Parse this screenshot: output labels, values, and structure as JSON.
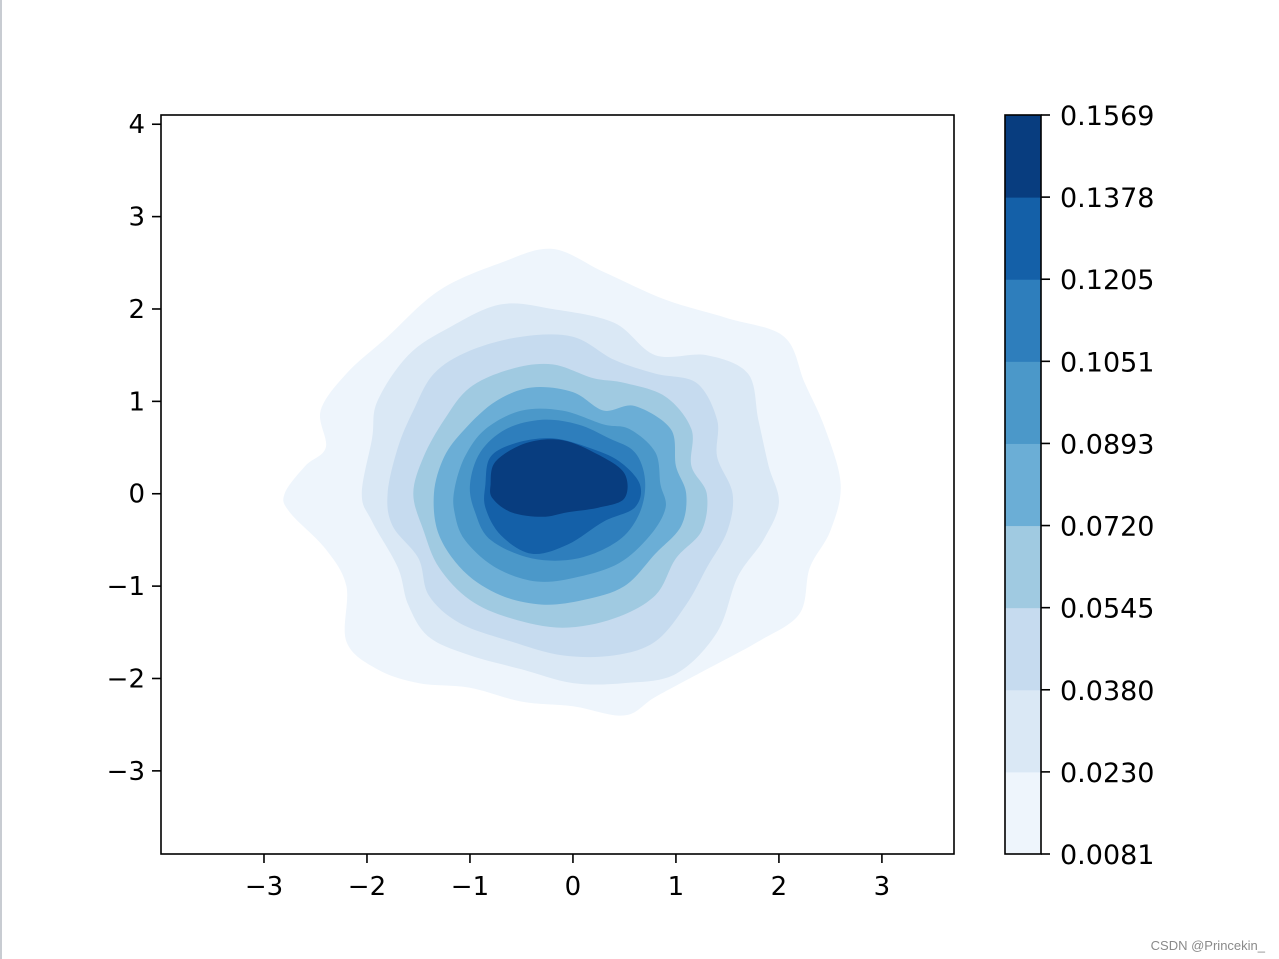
{
  "chart_data": {
    "type": "kde_filled_contour",
    "cmap": "Blues",
    "xlim": [
      -4.0,
      3.7
    ],
    "ylim": [
      -3.9,
      4.1
    ],
    "x_ticks": [
      -3,
      -2,
      -1,
      0,
      1,
      2,
      3
    ],
    "y_ticks": [
      -3,
      -2,
      -1,
      0,
      1,
      2,
      3,
      4
    ],
    "x_tick_labels": [
      "−3",
      "−2",
      "−1",
      "0",
      "1",
      "2",
      "3"
    ],
    "y_tick_labels": [
      "−3",
      "−2",
      "−1",
      "0",
      "1",
      "2",
      "3",
      "4"
    ],
    "center": [
      -0.1,
      0.1
    ],
    "levels": [
      0.0081,
      0.023,
      0.038,
      0.0545,
      0.072,
      0.0893,
      0.1051,
      0.1205,
      0.1378,
      0.1569
    ],
    "level_labels": [
      "0.0081",
      "0.0230",
      "0.0380",
      "0.0545",
      "0.0720",
      "0.0893",
      "0.1051",
      "0.1205",
      "0.1378",
      "0.1569"
    ],
    "colors": [
      "#eef5fc",
      "#dae8f5",
      "#c6dbef",
      "#a0cae1",
      "#6baed6",
      "#4b98c9",
      "#2e7ebc",
      "#1460a8",
      "#083d7f"
    ],
    "contours": [
      {
        "level": "0.0081",
        "color": "#eef5fc",
        "points": [
          [
            -2.8,
            0.0
          ],
          [
            -2.6,
            0.3
          ],
          [
            -2.4,
            0.5
          ],
          [
            -2.45,
            0.9
          ],
          [
            -2.2,
            1.3
          ],
          [
            -1.8,
            1.7
          ],
          [
            -1.3,
            2.2
          ],
          [
            -0.7,
            2.5
          ],
          [
            -0.2,
            2.65
          ],
          [
            0.3,
            2.4
          ],
          [
            0.9,
            2.1
          ],
          [
            1.5,
            1.9
          ],
          [
            2.05,
            1.7
          ],
          [
            2.25,
            1.2
          ],
          [
            2.45,
            0.7
          ],
          [
            2.6,
            0.1
          ],
          [
            2.5,
            -0.4
          ],
          [
            2.3,
            -0.8
          ],
          [
            2.2,
            -1.3
          ],
          [
            1.8,
            -1.6
          ],
          [
            1.3,
            -1.9
          ],
          [
            0.8,
            -2.2
          ],
          [
            0.5,
            -2.4
          ],
          [
            0.0,
            -2.3
          ],
          [
            -0.5,
            -2.25
          ],
          [
            -1.0,
            -2.1
          ],
          [
            -1.5,
            -2.05
          ],
          [
            -1.9,
            -1.9
          ],
          [
            -2.2,
            -1.6
          ],
          [
            -2.2,
            -1.0
          ],
          [
            -2.4,
            -0.6
          ],
          [
            -2.75,
            -0.2
          ]
        ]
      },
      {
        "level": "0.0230",
        "color": "#dae8f5",
        "points": [
          [
            -2.05,
            0.0
          ],
          [
            -1.95,
            0.6
          ],
          [
            -1.9,
            1.0
          ],
          [
            -1.6,
            1.5
          ],
          [
            -1.2,
            1.8
          ],
          [
            -0.7,
            2.05
          ],
          [
            -0.2,
            2.0
          ],
          [
            0.4,
            1.85
          ],
          [
            0.8,
            1.5
          ],
          [
            1.3,
            1.5
          ],
          [
            1.7,
            1.3
          ],
          [
            1.8,
            0.8
          ],
          [
            1.9,
            0.3
          ],
          [
            2.0,
            -0.1
          ],
          [
            1.85,
            -0.5
          ],
          [
            1.6,
            -0.9
          ],
          [
            1.4,
            -1.5
          ],
          [
            1.0,
            -1.95
          ],
          [
            0.5,
            -2.05
          ],
          [
            0.0,
            -2.05
          ],
          [
            -0.5,
            -1.9
          ],
          [
            -1.0,
            -1.75
          ],
          [
            -1.4,
            -1.55
          ],
          [
            -1.6,
            -1.2
          ],
          [
            -1.7,
            -0.8
          ],
          [
            -1.95,
            -0.3
          ]
        ]
      },
      {
        "level": "0.0380",
        "color": "#c6dbef",
        "points": [
          [
            -1.8,
            0.0
          ],
          [
            -1.7,
            0.5
          ],
          [
            -1.55,
            0.9
          ],
          [
            -1.35,
            1.3
          ],
          [
            -1.0,
            1.55
          ],
          [
            -0.5,
            1.7
          ],
          [
            0.0,
            1.7
          ],
          [
            0.4,
            1.45
          ],
          [
            0.8,
            1.3
          ],
          [
            1.2,
            1.2
          ],
          [
            1.4,
            0.8
          ],
          [
            1.4,
            0.4
          ],
          [
            1.55,
            0.0
          ],
          [
            1.5,
            -0.4
          ],
          [
            1.3,
            -0.8
          ],
          [
            1.1,
            -1.2
          ],
          [
            0.8,
            -1.6
          ],
          [
            0.4,
            -1.75
          ],
          [
            -0.1,
            -1.75
          ],
          [
            -0.6,
            -1.6
          ],
          [
            -1.1,
            -1.4
          ],
          [
            -1.4,
            -1.1
          ],
          [
            -1.5,
            -0.7
          ],
          [
            -1.75,
            -0.35
          ]
        ]
      },
      {
        "level": "0.0545",
        "color": "#a0cae1",
        "points": [
          [
            -1.55,
            0.0
          ],
          [
            -1.45,
            0.4
          ],
          [
            -1.25,
            0.8
          ],
          [
            -1.0,
            1.15
          ],
          [
            -0.6,
            1.35
          ],
          [
            -0.2,
            1.4
          ],
          [
            0.2,
            1.25
          ],
          [
            0.5,
            1.2
          ],
          [
            0.9,
            1.05
          ],
          [
            1.15,
            0.7
          ],
          [
            1.15,
            0.3
          ],
          [
            1.3,
            0.0
          ],
          [
            1.25,
            -0.4
          ],
          [
            1.0,
            -0.7
          ],
          [
            0.8,
            -1.1
          ],
          [
            0.4,
            -1.35
          ],
          [
            -0.1,
            -1.45
          ],
          [
            -0.6,
            -1.35
          ],
          [
            -1.0,
            -1.15
          ],
          [
            -1.3,
            -0.8
          ],
          [
            -1.45,
            -0.4
          ]
        ]
      },
      {
        "level": "0.0720",
        "color": "#6baed6",
        "points": [
          [
            -1.35,
            0.0
          ],
          [
            -1.25,
            0.4
          ],
          [
            -1.05,
            0.7
          ],
          [
            -0.75,
            1.0
          ],
          [
            -0.4,
            1.15
          ],
          [
            0.0,
            1.1
          ],
          [
            0.3,
            0.9
          ],
          [
            0.6,
            0.95
          ],
          [
            0.95,
            0.7
          ],
          [
            1.0,
            0.3
          ],
          [
            1.1,
            0.0
          ],
          [
            1.05,
            -0.35
          ],
          [
            0.8,
            -0.65
          ],
          [
            0.5,
            -1.0
          ],
          [
            0.1,
            -1.15
          ],
          [
            -0.3,
            -1.2
          ],
          [
            -0.7,
            -1.1
          ],
          [
            -1.05,
            -0.85
          ],
          [
            -1.3,
            -0.45
          ]
        ]
      },
      {
        "level": "0.0893",
        "color": "#4b98c9",
        "points": [
          [
            -1.15,
            0.05
          ],
          [
            -1.05,
            0.4
          ],
          [
            -0.85,
            0.7
          ],
          [
            -0.5,
            0.9
          ],
          [
            -0.1,
            0.9
          ],
          [
            0.3,
            0.75
          ],
          [
            0.55,
            0.7
          ],
          [
            0.8,
            0.45
          ],
          [
            0.85,
            0.1
          ],
          [
            0.9,
            -0.15
          ],
          [
            0.75,
            -0.45
          ],
          [
            0.45,
            -0.75
          ],
          [
            0.05,
            -0.9
          ],
          [
            -0.35,
            -0.95
          ],
          [
            -0.75,
            -0.8
          ],
          [
            -1.05,
            -0.5
          ],
          [
            -1.15,
            -0.2
          ]
        ]
      },
      {
        "level": "0.1051",
        "color": "#2e7ebc",
        "points": [
          [
            -1.0,
            0.1
          ],
          [
            -0.9,
            0.45
          ],
          [
            -0.65,
            0.7
          ],
          [
            -0.3,
            0.8
          ],
          [
            0.05,
            0.75
          ],
          [
            0.35,
            0.6
          ],
          [
            0.6,
            0.45
          ],
          [
            0.7,
            0.15
          ],
          [
            0.65,
            -0.2
          ],
          [
            0.45,
            -0.5
          ],
          [
            0.05,
            -0.7
          ],
          [
            -0.4,
            -0.7
          ],
          [
            -0.8,
            -0.5
          ],
          [
            -0.95,
            -0.2
          ]
        ]
      },
      {
        "level": "0.1205",
        "color": "#1460a8",
        "points": [
          [
            -0.85,
            0.1
          ],
          [
            -0.8,
            0.4
          ],
          [
            -0.55,
            0.55
          ],
          [
            -0.2,
            0.6
          ],
          [
            0.15,
            0.5
          ],
          [
            0.45,
            0.35
          ],
          [
            0.65,
            0.1
          ],
          [
            0.6,
            -0.15
          ],
          [
            0.3,
            -0.3
          ],
          [
            -0.05,
            -0.55
          ],
          [
            -0.4,
            -0.65
          ],
          [
            -0.7,
            -0.45
          ],
          [
            -0.85,
            -0.15
          ]
        ]
      },
      {
        "level": "0.1378",
        "color": "#083d7f",
        "points": [
          [
            -0.8,
            0.1
          ],
          [
            -0.75,
            0.35
          ],
          [
            -0.45,
            0.55
          ],
          [
            -0.1,
            0.58
          ],
          [
            0.25,
            0.42
          ],
          [
            0.5,
            0.22
          ],
          [
            0.5,
            -0.05
          ],
          [
            0.25,
            -0.15
          ],
          [
            -0.05,
            -0.2
          ],
          [
            -0.3,
            -0.25
          ],
          [
            -0.6,
            -0.2
          ],
          [
            -0.78,
            -0.05
          ]
        ]
      }
    ]
  },
  "watermark": "CSDN @Princekin_"
}
